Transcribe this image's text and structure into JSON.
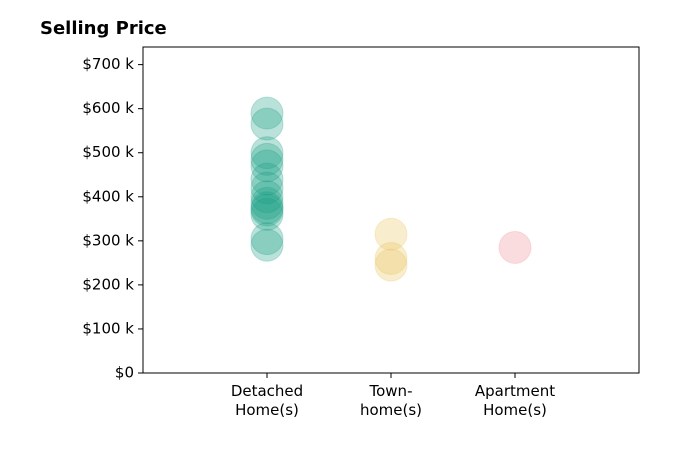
{
  "chart_data": {
    "type": "strip",
    "title": "Selling Price",
    "categories": [
      "Detached\nHome(s)",
      "Town-\nhome(s)",
      "Apartment\nHome(s)"
    ],
    "series": [
      {
        "color": "#1a9e85",
        "values": [
          590,
          565,
          500,
          485,
          470,
          440,
          420,
          400,
          385,
          375,
          370,
          360,
          305,
          290
        ]
      },
      {
        "color": "#e8c25a",
        "values": [
          315,
          260,
          245
        ]
      },
      {
        "color": "#f08a94",
        "values": [
          285
        ]
      }
    ],
    "ylim": [
      0,
      740
    ],
    "yticks": [
      {
        "value": 0,
        "label": "$0"
      },
      {
        "value": 100,
        "label": "$100 k"
      },
      {
        "value": 200,
        "label": "$200 k"
      },
      {
        "value": 300,
        "label": "$300 k"
      },
      {
        "value": 400,
        "label": "$400 k"
      },
      {
        "value": 500,
        "label": "$500 k"
      },
      {
        "value": 600,
        "label": "$600 k"
      },
      {
        "value": 700,
        "label": "$700 k"
      }
    ]
  }
}
